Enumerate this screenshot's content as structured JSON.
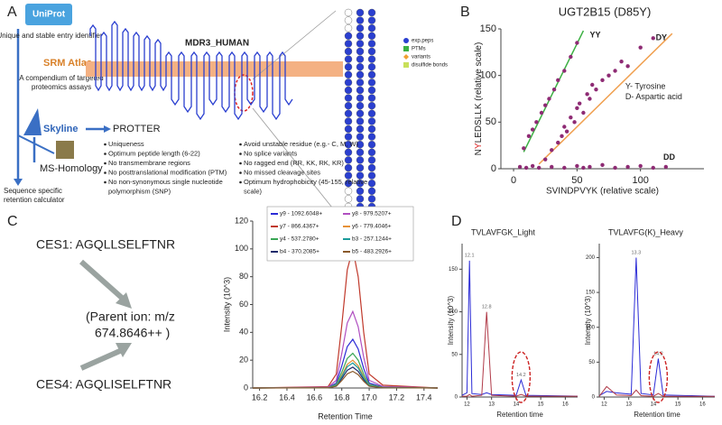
{
  "panel_a": {
    "label": "A",
    "uniprot": "UniProt",
    "entry_text": "Unique and stable entry identifier",
    "srm_atlas": "SRM Atlas",
    "srm_text": [
      "A compendium of targeted",
      "proteomics assays"
    ],
    "skyline": "Skyline",
    "protter": "PROTTER",
    "ms_homology": "MS-Homology",
    "retention": [
      "Sequence specific",
      "retention calculator"
    ],
    "protein": "MDR3_HUMAN",
    "legend": [
      "exp.peps",
      "PTMs",
      "variants",
      "disulfide bonds"
    ],
    "criteria_left": [
      [
        "Uniqueness"
      ],
      [
        "Optimum peptide length (6-22)"
      ],
      [
        "No transmembrane regions"
      ],
      [
        "No posttranslational modification (PTM)"
      ],
      [
        "No non-synonymous  single nucleotide",
        "polymorphism (SNP)"
      ]
    ],
    "criteria_right": [
      [
        "Avoid unstable residue (e.g.- C, M, W)"
      ],
      [
        "No splice variants"
      ],
      [
        "No ragged end (RR, KK, RK, KR)"
      ],
      [
        "No missed cleavage sites"
      ],
      [
        "Optimum hydrophobicity (45-155, relative",
        "scale)"
      ]
    ]
  },
  "panel_b": {
    "label": "B"
  },
  "panel_c": {
    "label": "C",
    "ces1": "CES1: AGQLLSELFTNR",
    "parent_ion": [
      "(Parent ion: m/z",
      "674.8646++ )"
    ],
    "ces4": "CES4: AGQLISELFTNR"
  },
  "panel_d": {
    "label": "D"
  },
  "chart_data": [
    {
      "type": "scatter",
      "title": "UGT2B15 (D85Y)",
      "x_label": "SVINDPVYK (relative scale)",
      "y_label": [
        "N",
        "Y",
        "LEDSLLK (relative scale)"
      ],
      "xlim": [
        -10,
        150
      ],
      "ylim": [
        0,
        150
      ],
      "xticks": [
        0,
        50,
        100
      ],
      "yticks": [
        0,
        50,
        100,
        150
      ],
      "series": [
        {
          "color": "#8e2b74",
          "x": [
            8,
            12,
            15,
            18,
            22,
            25,
            28,
            32,
            35,
            40,
            45,
            50
          ],
          "values": [
            22,
            35,
            42,
            50,
            60,
            68,
            75,
            85,
            95,
            105,
            120,
            135
          ]
        },
        {
          "color": "#8e2b74",
          "x": [
            25,
            30,
            35,
            38,
            40,
            42,
            45,
            48,
            50,
            52,
            55,
            58,
            60,
            62,
            65,
            70,
            75,
            80,
            85,
            90,
            100,
            110
          ],
          "values": [
            10,
            20,
            28,
            35,
            45,
            40,
            55,
            50,
            65,
            70,
            60,
            80,
            75,
            90,
            85,
            95,
            100,
            105,
            115,
            110,
            130,
            140
          ]
        },
        {
          "color": "#8e2b74",
          "x": [
            5,
            10,
            15,
            20,
            30,
            40,
            50,
            55,
            60,
            70,
            80,
            90,
            100,
            110,
            120
          ],
          "values": [
            2,
            1,
            3,
            1,
            2,
            1,
            3,
            1,
            2,
            4,
            1,
            2,
            3,
            1,
            2
          ]
        }
      ],
      "lines": [
        {
          "color": "#3cb043",
          "x": [
            8,
            55
          ],
          "values": [
            18,
            148
          ]
        },
        {
          "color": "#f0a050",
          "x": [
            20,
            125
          ],
          "values": [
            5,
            145
          ]
        }
      ],
      "annotations": [
        {
          "text": "YY",
          "x": 60,
          "y": 143
        },
        {
          "text": "DY",
          "x": 112,
          "y": 140
        },
        {
          "text": "DD",
          "x": 118,
          "y": 12
        },
        {
          "text": "Y- Tyrosine",
          "x": 88,
          "y": 88
        },
        {
          "text": "D- Aspartic acid",
          "x": 88,
          "y": 77
        }
      ]
    },
    {
      "type": "line",
      "y_label": "Intensity (10^3)",
      "x_label": "Retention Time",
      "xlim": [
        16.15,
        17.5
      ],
      "ylim": [
        0,
        120
      ],
      "xticks": [
        16.2,
        16.4,
        16.6,
        16.8,
        {
          "value": 17,
          "label": "17.0"
        },
        17.2,
        17.4
      ],
      "yticks": [
        0,
        20,
        40,
        60,
        80,
        100,
        120
      ],
      "x": [
        16.15,
        16.7,
        16.76,
        16.8,
        16.84,
        16.88,
        16.92,
        16.96,
        17.0,
        17.1,
        17.5
      ],
      "series": [
        {
          "name": "y9 - 1092.6048+",
          "color": "#2b2bd6",
          "values": [
            0,
            0.4,
            3.5,
            15.8,
            29.8,
            35,
            28,
            14,
            3.5,
            0.7,
            0
          ]
        },
        {
          "name": "y7 - 866.4367+",
          "color": "#c0392b",
          "values": [
            0,
            1,
            10,
            45,
            85,
            100,
            80,
            40,
            10,
            2,
            0
          ]
        },
        {
          "name": "y4 - 537.2780+",
          "color": "#3aa655",
          "values": [
            0,
            0.3,
            2.5,
            11.3,
            21.3,
            25,
            20,
            10,
            2.5,
            0.5,
            0
          ]
        },
        {
          "name": "b4 - 370.2085+",
          "color": "#1f2a6b",
          "values": [
            0,
            0.2,
            1.5,
            6.8,
            12.8,
            15,
            12,
            6,
            1.5,
            0.3,
            0
          ]
        },
        {
          "name": "y8 - 979.5207+",
          "color": "#b04fc0",
          "values": [
            0,
            0.6,
            5.5,
            24.8,
            46.8,
            55,
            44,
            22,
            5.5,
            1.1,
            0
          ]
        },
        {
          "name": "y6 - 779.4046+",
          "color": "#e69138",
          "values": [
            0,
            0.2,
            2,
            9,
            17,
            20,
            16,
            8,
            2,
            0.4,
            0
          ]
        },
        {
          "name": "b3 - 257.1244+",
          "color": "#1a9a9a",
          "values": [
            0,
            0.2,
            1.8,
            8.1,
            15.3,
            18,
            14.4,
            7.2,
            1.8,
            0.4,
            0
          ]
        },
        {
          "name": "b5 - 483.2926+",
          "color": "#8a5a2b",
          "values": [
            0,
            0.1,
            1.2,
            5.4,
            10.2,
            12,
            9.6,
            4.8,
            1.2,
            0.2,
            0
          ]
        }
      ],
      "annotations": [
        {
          "text": "16.9",
          "x": 16.88,
          "y": 104
        }
      ]
    },
    {
      "type": "line",
      "title": "TVLAVFGK_Light",
      "y_label": "Intensity (10^3)",
      "x_label": "Retention time",
      "xlim": [
        11.8,
        16.5
      ],
      "ylim": [
        0,
        180
      ],
      "xticks": [
        12,
        13,
        14,
        15,
        16
      ],
      "yticks": [
        0,
        50,
        100,
        150
      ],
      "x": [
        11.8,
        12.0,
        12.1,
        12.2,
        12.6,
        12.8,
        13.0,
        14.0,
        14.2,
        14.4,
        16.5
      ],
      "series": [
        {
          "color": "#2b2bd6",
          "values": [
            2,
            5,
            160,
            4,
            3,
            5,
            3,
            2,
            20,
            2,
            1
          ]
        },
        {
          "color": "#b03a48",
          "values": [
            1,
            1,
            3,
            1,
            2,
            100,
            2,
            1,
            3,
            1,
            1
          ]
        }
      ],
      "annotations": [
        {
          "text": "12.1",
          "x": 12.1,
          "y": 166
        },
        {
          "text": "12.8",
          "x": 12.8,
          "y": 106
        },
        {
          "text": "14.2",
          "x": 14.2,
          "y": 26
        }
      ]
    },
    {
      "type": "line",
      "title": "TVLAVFG(K)_Heavy",
      "y_label": "Intensity (10^3)",
      "x_label": "Retention time",
      "xlim": [
        11.8,
        16.5
      ],
      "ylim": [
        0,
        220
      ],
      "xticks": [
        12,
        13,
        14,
        15,
        16
      ],
      "yticks": [
        0,
        50,
        100,
        150,
        200
      ],
      "x": [
        11.8,
        12.1,
        12.5,
        13.1,
        13.3,
        13.5,
        14.0,
        14.2,
        14.4,
        16.5
      ],
      "series": [
        {
          "color": "#2b2bd6",
          "values": [
            2,
            8,
            6,
            4,
            200,
            5,
            3,
            55,
            3,
            1
          ]
        },
        {
          "color": "#b03a48",
          "values": [
            1,
            15,
            3,
            2,
            10,
            2,
            1,
            5,
            1,
            1
          ]
        }
      ],
      "annotations": [
        {
          "text": "13.3",
          "x": 13.3,
          "y": 207
        },
        {
          "text": "14.2",
          "x": 14.2,
          "y": 62
        }
      ]
    }
  ]
}
